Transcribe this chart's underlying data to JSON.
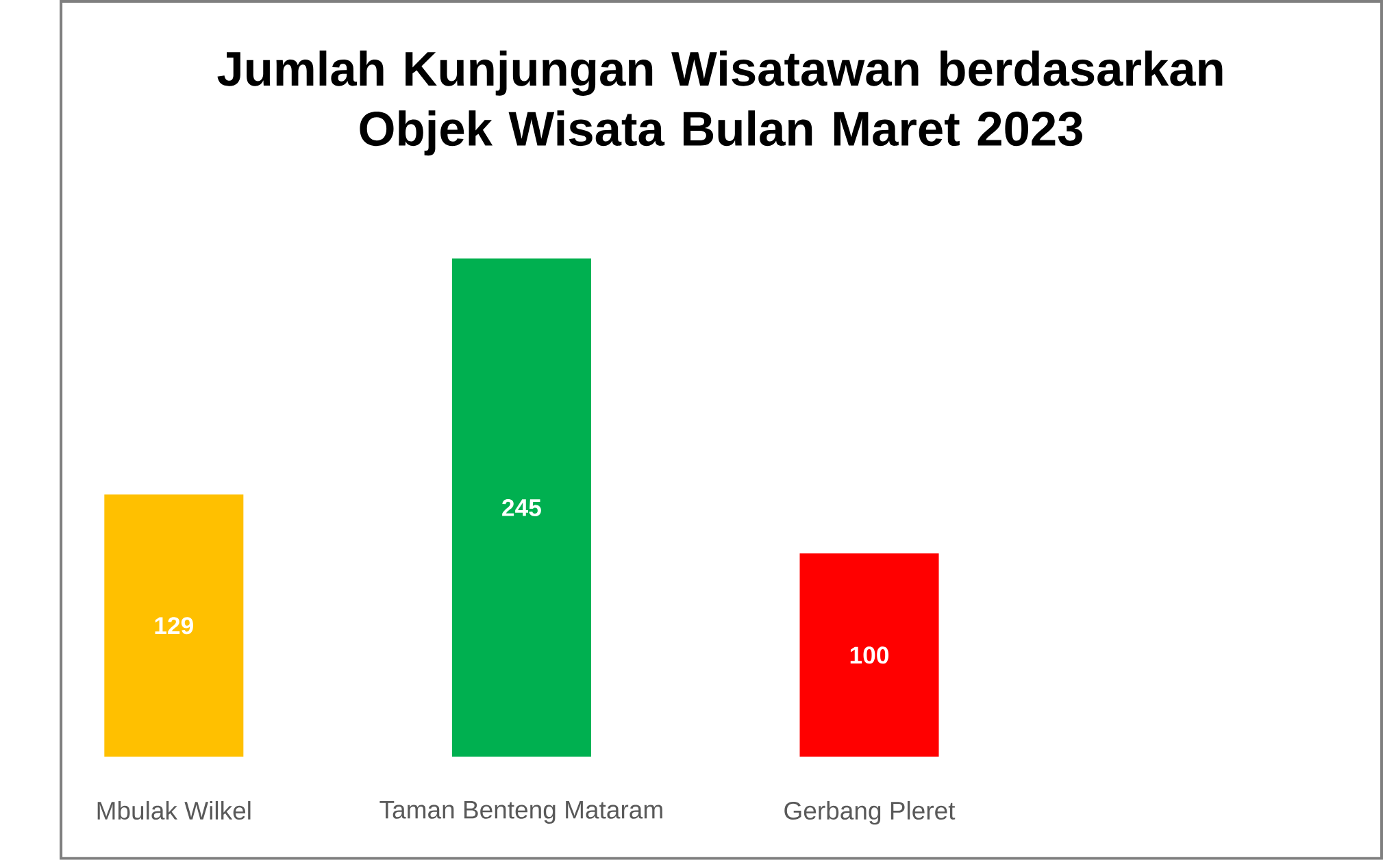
{
  "chart_data": {
    "type": "bar",
    "title": "Jumlah Kunjungan Wisatawan berdasarkan Objek Wisata Bulan Maret 2023",
    "categories": [
      "Mbulak Wilkel",
      "Taman Benteng Mataram",
      "Gerbang Pleret"
    ],
    "values": [
      129,
      245,
      100
    ],
    "colors": [
      "#ffc000",
      "#00b050",
      "#ff0000"
    ],
    "data_labels": true
  }
}
